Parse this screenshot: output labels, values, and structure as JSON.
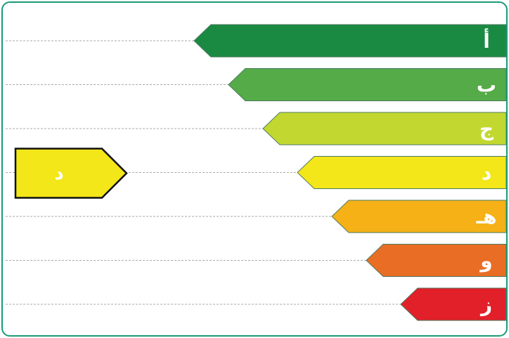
{
  "rating_scale": {
    "grades": [
      {
        "letter": "أ",
        "color": "#1a8a43"
      },
      {
        "letter": "ب",
        "color": "#55ab47"
      },
      {
        "letter": "ج",
        "color": "#c2d831"
      },
      {
        "letter": "د",
        "color": "#f3e619"
      },
      {
        "letter": "هـ",
        "color": "#f5b116"
      },
      {
        "letter": "و",
        "color": "#e96d25"
      },
      {
        "letter": "ز",
        "color": "#e2202a"
      }
    ],
    "line_color": "#aaaaaa",
    "outline_color": "#4d7a5f"
  },
  "current_rating": {
    "letter": "د",
    "color": "#f3e619",
    "border_color": "#111111",
    "row_index": 3
  },
  "frame": {
    "border_color": "#1a9a78"
  }
}
